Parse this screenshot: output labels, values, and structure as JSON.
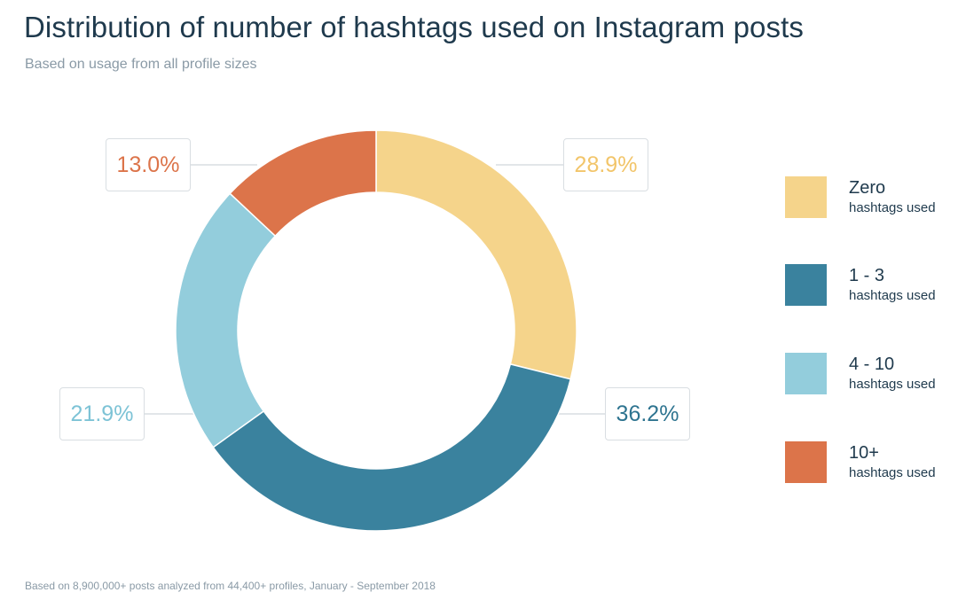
{
  "title": "Distribution of number of hashtags used on Instagram posts",
  "subtitle": "Based on usage from all profile sizes",
  "footnote": "Based on 8,900,000+ posts analyzed from 44,400+ profiles, January - September 2018",
  "legend_sub": "hashtags used",
  "chart_data": {
    "type": "pie",
    "variant": "donut",
    "title": "Distribution of number of hashtags used on Instagram posts",
    "categories": [
      "Zero",
      "1 - 3",
      "4 - 10",
      "10+"
    ],
    "values": [
      28.9,
      36.2,
      21.9,
      13.0
    ],
    "value_labels": [
      "28.9%",
      "36.2%",
      "21.9%",
      "13.0%"
    ],
    "colors": [
      "#f5d48b",
      "#3a829e",
      "#93cddc",
      "#dc744a"
    ],
    "label_colors": [
      "#f2c56a",
      "#2e7490",
      "#7dc3d6",
      "#dc744a"
    ],
    "legend_placement": "right",
    "start": "top",
    "direction": "clockwise"
  }
}
